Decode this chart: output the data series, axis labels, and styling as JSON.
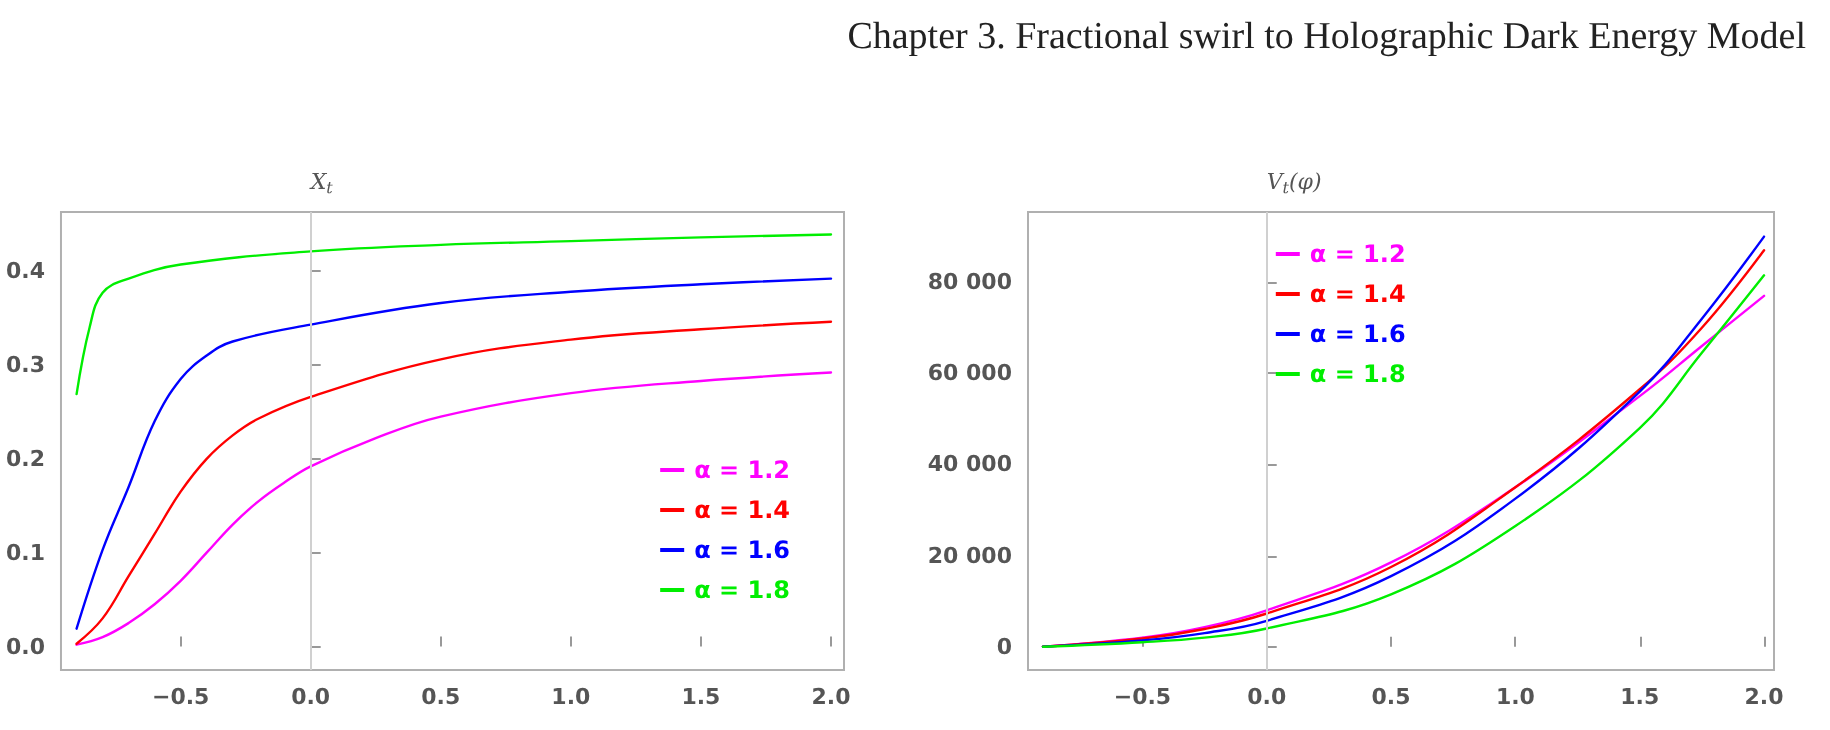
{
  "chart_data": [
    {
      "type": "line",
      "ylabel": "X$_{t}$",
      "annotations": [
        "Chapter 3.  Fractional swirl to Holographic Dark Energy Model"
      ],
      "legend": "right",
      "grid": false,
      "marker": "none",
      "line_style": "solid",
      "xlim": [
        -0.96,
        2.05
      ],
      "ylim": [
        -0.025,
        0.463
      ],
      "xticks": [
        {
          "value": -0.5,
          "label": "−0.5"
        },
        {
          "value": 0,
          "label": "0.0"
        },
        {
          "value": 0.5,
          "label": "0.5"
        },
        {
          "value": 1,
          "label": "1.0"
        },
        {
          "value": 1.5,
          "label": "1.5"
        },
        {
          "value": 2,
          "label": "2.0"
        }
      ],
      "yticks": [
        {
          "value": 0,
          "label": "0.0"
        },
        0.1,
        0.2,
        0.3,
        0.4
      ],
      "ref_lines": [
        {
          "axis": "x",
          "value": 0,
          "color": "#d0d0d0"
        }
      ],
      "series": [
        {
          "name": "α = 1.2",
          "color": "#ff00ff",
          "x": [
            -0.9,
            -0.8,
            -0.7,
            -0.6,
            -0.5,
            -0.4,
            -0.3,
            -0.2,
            -0.1,
            0,
            0.25,
            0.5,
            1,
            1.5,
            2
          ],
          "values": [
            0.002,
            0.01,
            0.025,
            0.045,
            0.07,
            0.1,
            0.13,
            0.155,
            0.175,
            0.192,
            0.222,
            0.245,
            0.27,
            0.283,
            0.292
          ]
        },
        {
          "name": "α = 1.4",
          "color": "#ff0000",
          "x": [
            -0.9,
            -0.8,
            -0.7,
            -0.6,
            -0.5,
            -0.4,
            -0.3,
            -0.2,
            0,
            0.5,
            1,
            1.5,
            2
          ],
          "values": [
            0.003,
            0.03,
            0.075,
            0.12,
            0.165,
            0.2,
            0.225,
            0.243,
            0.266,
            0.306,
            0.327,
            0.338,
            0.346
          ]
        },
        {
          "name": "α = 1.6",
          "color": "#0000ff",
          "x": [
            -0.9,
            -0.8,
            -0.7,
            -0.6,
            -0.5,
            -0.4,
            -0.3,
            0,
            0.5,
            1,
            1.5,
            2
          ],
          "values": [
            0.019,
            0.103,
            0.17,
            0.24,
            0.285,
            0.31,
            0.325,
            0.343,
            0.366,
            0.378,
            0.386,
            0.392
          ]
        },
        {
          "name": "α = 1.8",
          "color": "#00ee00",
          "x": [
            -0.9,
            -0.85,
            -0.8,
            -0.7,
            -0.5,
            0,
            0.5,
            1,
            1.5,
            2
          ],
          "values": [
            0.269,
            0.34,
            0.377,
            0.392,
            0.407,
            0.421,
            0.428,
            0.432,
            0.436,
            0.439
          ]
        }
      ]
    },
    {
      "type": "line",
      "ylabel": "V$_{t}$(φ)",
      "legend": "top",
      "grid": false,
      "marker": "none",
      "line_style": "solid",
      "xlim": [
        -0.96,
        2.04
      ],
      "ylim": [
        -5100,
        95400
      ],
      "xticks": [
        {
          "value": -0.5,
          "label": "−0.5"
        },
        {
          "value": 0,
          "label": "0.0"
        },
        {
          "value": 0.5,
          "label": "0.5"
        },
        {
          "value": 1,
          "label": "1.0"
        },
        {
          "value": 1.5,
          "label": "1.5"
        },
        {
          "value": 2,
          "label": "2.0"
        }
      ],
      "yticks": [
        0,
        {
          "value": 20000,
          "label": "20 000"
        },
        {
          "value": 40000,
          "label": "40 000"
        },
        {
          "value": 60000,
          "label": "60 000"
        },
        {
          "value": 80000,
          "label": "80 000"
        }
      ],
      "ref_lines": [
        {
          "axis": "x",
          "value": 0,
          "color": "#d0d0d0"
        }
      ],
      "series": [
        {
          "name": "α = 1.2",
          "color": "#ff00ff",
          "x": [
            -0.9,
            -0.5,
            -0.25,
            0,
            0.5,
            1,
            1.5,
            1.75,
            2
          ],
          "values": [
            0,
            2000,
            4300,
            8000,
            18500,
            35000,
            55000,
            66000,
            77000
          ]
        },
        {
          "name": "α = 1.4",
          "color": "#ff0000",
          "x": [
            -0.9,
            -0.5,
            -0.25,
            0,
            0.5,
            1,
            1.5,
            1.75,
            2
          ],
          "values": [
            0,
            1800,
            3900,
            7300,
            17500,
            35000,
            56500,
            70000,
            87000
          ]
        },
        {
          "name": "α = 1.6",
          "color": "#0000ff",
          "x": [
            -0.9,
            -0.5,
            -0.25,
            0,
            0.5,
            1,
            1.5,
            1.75,
            2
          ],
          "values": [
            0,
            1400,
            3000,
            5700,
            15500,
            32500,
            56000,
            72000,
            90000
          ]
        },
        {
          "name": "α = 1.8",
          "color": "#00ee00",
          "x": [
            -0.9,
            -0.5,
            -0.25,
            0,
            0.5,
            1,
            1.5,
            1.75,
            2
          ],
          "values": [
            0,
            1000,
            2000,
            4000,
            11500,
            26500,
            48000,
            64500,
            81500
          ]
        }
      ]
    }
  ]
}
